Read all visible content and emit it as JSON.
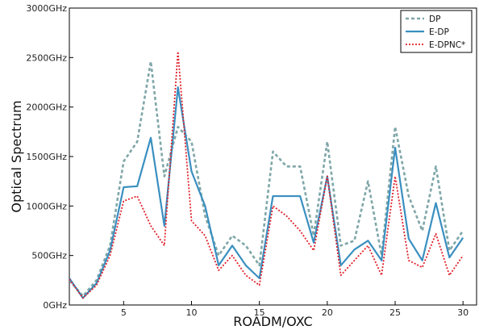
{
  "chart_data": {
    "type": "line",
    "title": "",
    "xlabel": "ROADM/OXC",
    "ylabel": "Optical Spectrum",
    "xlim": [
      1,
      31
    ],
    "ylim": [
      0,
      3000
    ],
    "xticks": [
      5,
      10,
      15,
      20,
      25,
      30
    ],
    "xtick_labels": [
      "5",
      "10",
      "15",
      "20",
      "25",
      "30"
    ],
    "yticks": [
      0,
      500,
      1000,
      1500,
      2000,
      2500,
      3000
    ],
    "ytick_labels": [
      "0GHz",
      "500GHz",
      "1000GHz",
      "1500GHz",
      "2000GHz",
      "2500GHz",
      "3000GHz"
    ],
    "grid": false,
    "legend_position": "top-right",
    "x": [
      1,
      2,
      3,
      4,
      5,
      6,
      7,
      8,
      9,
      10,
      11,
      12,
      13,
      14,
      15,
      16,
      17,
      18,
      19,
      20,
      21,
      22,
      23,
      24,
      25,
      26,
      27,
      28,
      29,
      30
    ],
    "series": [
      {
        "name": "DP",
        "color": "#7fa6a8",
        "style": "dashed",
        "values": [
          250,
          90,
          250,
          600,
          1450,
          1650,
          2460,
          1300,
          1800,
          1650,
          900,
          500,
          700,
          600,
          400,
          1550,
          1400,
          1400,
          700,
          1650,
          600,
          650,
          1250,
          500,
          1800,
          1100,
          750,
          1400,
          550,
          750
        ]
      },
      {
        "name": "E-DP",
        "color": "#3a8fc0",
        "style": "solid",
        "values": [
          270,
          70,
          220,
          550,
          1190,
          1200,
          1690,
          800,
          2200,
          1350,
          1000,
          400,
          600,
          400,
          270,
          1100,
          1100,
          1100,
          630,
          1300,
          400,
          560,
          650,
          450,
          1590,
          670,
          450,
          1030,
          480,
          680
        ]
      },
      {
        "name": "E-DPNC*",
        "color": "#e0202a",
        "style": "dotted",
        "values": [
          260,
          70,
          200,
          500,
          1050,
          1100,
          800,
          600,
          2560,
          850,
          700,
          350,
          500,
          300,
          200,
          1000,
          900,
          750,
          550,
          1300,
          300,
          450,
          600,
          300,
          1300,
          450,
          380,
          720,
          300,
          500
        ]
      }
    ]
  }
}
